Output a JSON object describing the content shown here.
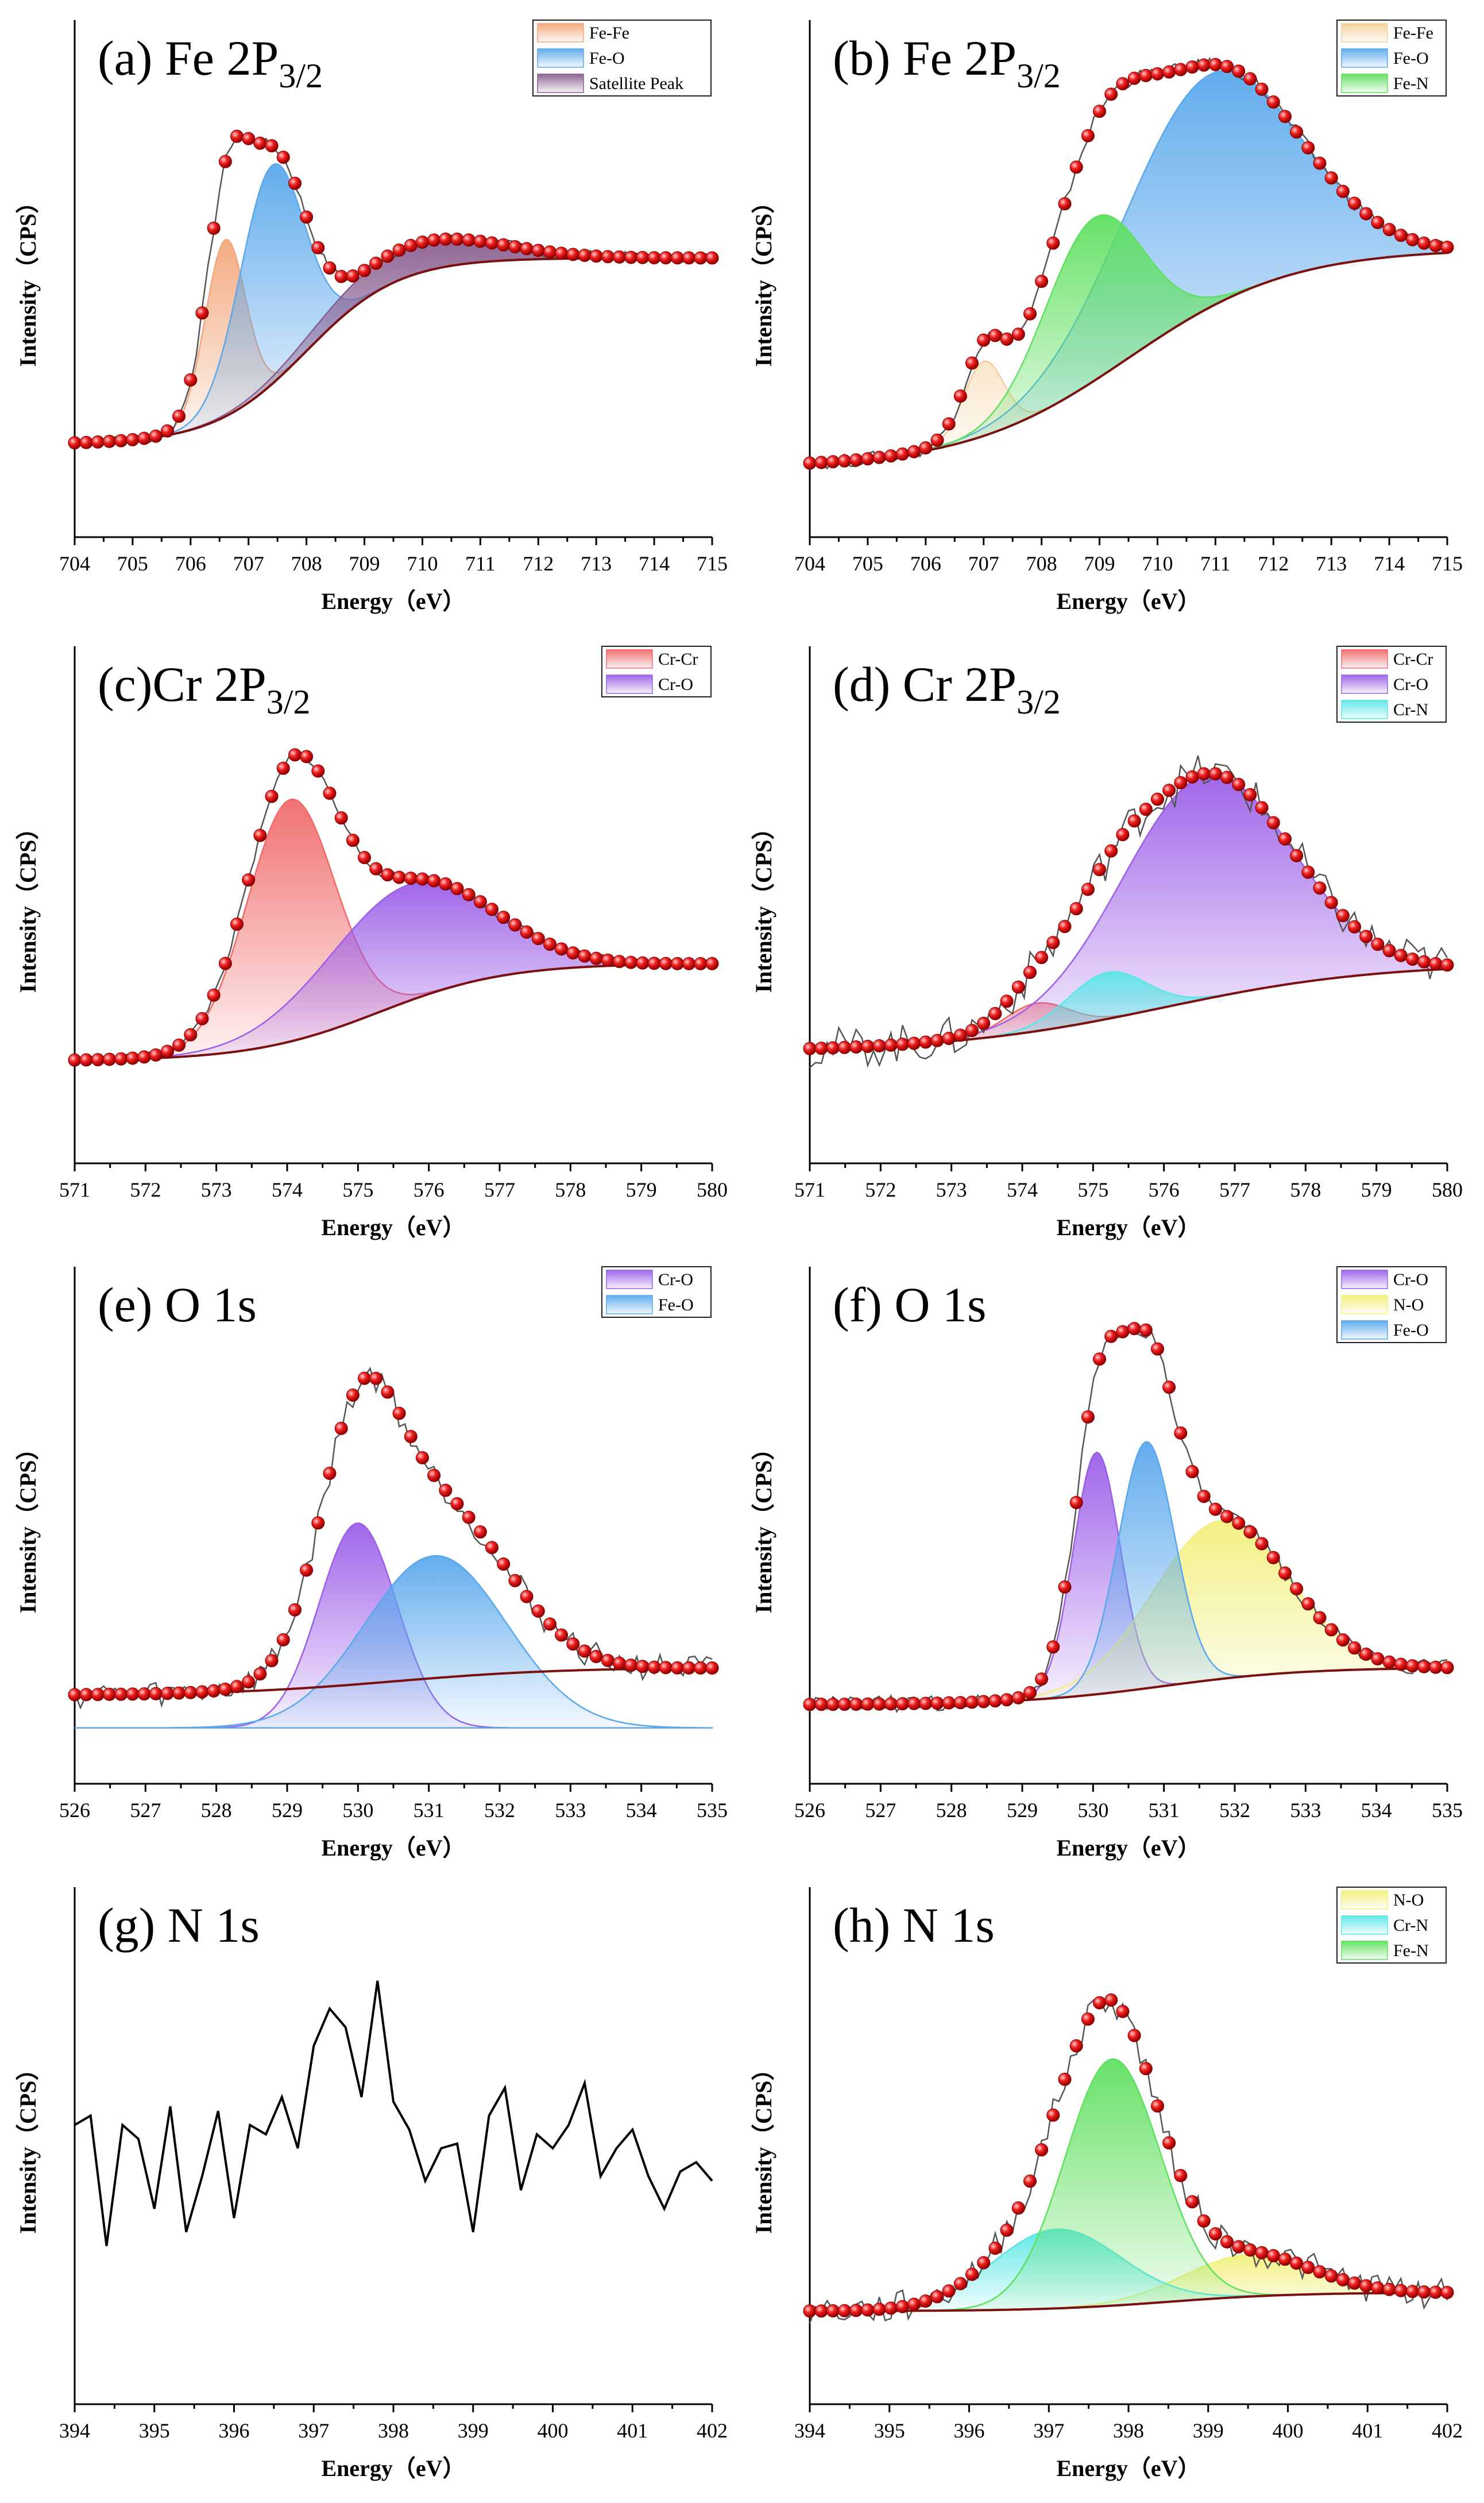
{
  "figure": {
    "y_label": "Intensity（CPS）",
    "x_label": "Energy（eV）"
  },
  "colors": {
    "fit_points": "#e01010",
    "background": "#7a1010",
    "raw": "#555555"
  },
  "chart_data": [
    {
      "id": "a",
      "type": "area",
      "title": "(a) Fe 2P",
      "title_sub": "3/2",
      "xlabel": "Energy（eV）",
      "ylabel": "Intensity（CPS）",
      "xlim": [
        704,
        715
      ],
      "ylim": [
        0,
        1
      ],
      "xticks": [
        "704",
        "705",
        "706",
        "707",
        "708",
        "709",
        "710",
        "711",
        "712",
        "713",
        "714",
        "715"
      ],
      "background": {
        "low": 0.2,
        "high": 0.6,
        "mid": 708,
        "width": 0.8
      },
      "noise": 0.012,
      "series": [
        {
          "name": "Fe-Fe",
          "color": "#f3a77b",
          "center": 706.6,
          "height": 0.38,
          "sigma": 0.35,
          "base": "bg"
        },
        {
          "name": "Fe-O",
          "color": "#5aa8ec",
          "center": 707.4,
          "height": 0.47,
          "sigma": 0.55,
          "base": "bg"
        },
        {
          "name": "Satellite Peak",
          "color": "#8a5f8f",
          "center": 709.8,
          "height": 0.065,
          "sigma": 1.4,
          "base": "bg"
        }
      ]
    },
    {
      "id": "b",
      "type": "area",
      "title": "(b) Fe 2P",
      "title_sub": "3/2",
      "xlabel": "Energy（eV）",
      "ylabel": "Intensity（CPS）",
      "xlim": [
        704,
        715
      ],
      "ylim": [
        0,
        1
      ],
      "xticks": [
        "704",
        "705",
        "706",
        "707",
        "708",
        "709",
        "710",
        "711",
        "712",
        "713",
        "714",
        "715"
      ],
      "background": {
        "low": 0.15,
        "high": 0.62,
        "mid": 709.5,
        "width": 1.4
      },
      "noise": 0.015,
      "series": [
        {
          "name": "Fe-Fe",
          "color": "#f5cf9a",
          "center": 707.0,
          "height": 0.16,
          "sigma": 0.35,
          "base": "bg"
        },
        {
          "name": "Fe-O",
          "color": "#5aa8ec",
          "center": 710.9,
          "height": 0.5,
          "sigma": 1.5,
          "base": "bg"
        },
        {
          "name": "Fe-N",
          "color": "#5fe05f",
          "center": 708.9,
          "height": 0.35,
          "sigma": 0.85,
          "base": "bg"
        }
      ]
    },
    {
      "id": "c",
      "type": "area",
      "title": "(c)Cr 2P",
      "title_sub": "3/2",
      "xlabel": "Energy（eV）",
      "ylabel": "Intensity（CPS）",
      "xlim": [
        571,
        580
      ],
      "ylim": [
        0,
        1
      ],
      "xticks": [
        "571",
        "572",
        "573",
        "574",
        "575",
        "576",
        "577",
        "578",
        "579",
        "580"
      ],
      "background": {
        "low": 0.22,
        "high": 0.43,
        "mid": 575.3,
        "width": 0.9
      },
      "noise": 0.01,
      "series": [
        {
          "name": "Cr-Cr",
          "color": "#f06a6a",
          "center": 574.05,
          "height": 0.52,
          "sigma": 0.62,
          "base": "bg"
        },
        {
          "name": "Cr-O",
          "color": "#9b5ee8",
          "center": 575.7,
          "height": 0.25,
          "sigma": 1.15,
          "base": "bg"
        }
      ]
    },
    {
      "id": "d",
      "type": "area",
      "title": "(d) Cr 2P",
      "title_sub": "3/2",
      "xlabel": "Energy（eV）",
      "ylabel": "Intensity（CPS）",
      "xlim": [
        571,
        580
      ],
      "ylim": [
        0,
        1
      ],
      "xticks": [
        "571",
        "572",
        "573",
        "574",
        "575",
        "576",
        "577",
        "578",
        "579",
        "580"
      ],
      "background": {
        "low": 0.24,
        "high": 0.43,
        "mid": 576.0,
        "width": 1.5
      },
      "noise": 0.045,
      "series": [
        {
          "name": "Cr-Cr",
          "color": "#f06a6a",
          "center": 574.2,
          "height": 0.06,
          "sigma": 0.45,
          "base": "bg"
        },
        {
          "name": "Cr-O",
          "color": "#9b5ee8",
          "center": 576.6,
          "height": 0.48,
          "sigma": 1.2,
          "base": "bg"
        },
        {
          "name": "Cr-N",
          "color": "#5ae6e6",
          "center": 575.2,
          "height": 0.1,
          "sigma": 0.55,
          "base": "bg"
        }
      ]
    },
    {
      "id": "e",
      "type": "area",
      "title": "(e) O 1s",
      "title_sub": "",
      "xlabel": "Energy（eV）",
      "ylabel": "Intensity（CPS）",
      "xlim": [
        526,
        535
      ],
      "ylim": [
        0,
        1
      ],
      "xticks": [
        "526",
        "527",
        "528",
        "529",
        "530",
        "531",
        "532",
        "533",
        "534",
        "535"
      ],
      "background": {
        "low": 0.19,
        "high": 0.25,
        "mid": 530.5,
        "width": 1.2
      },
      "noise": 0.03,
      "series": [
        {
          "name": "Cr-O",
          "color": "#9b5ee8",
          "center": 530.0,
          "height": 0.44,
          "sigma": 0.55,
          "base": "zero"
        },
        {
          "name": "Fe-O",
          "color": "#5aa8ec",
          "center": 531.1,
          "height": 0.37,
          "sigma": 1.0,
          "base": "zero"
        }
      ]
    },
    {
      "id": "f",
      "type": "area",
      "title": "(f) O 1s",
      "title_sub": "",
      "xlabel": "Energy（eV）",
      "ylabel": "Intensity（CPS）",
      "xlim": [
        526,
        535
      ],
      "ylim": [
        0,
        1
      ],
      "xticks": [
        "526",
        "527",
        "528",
        "529",
        "530",
        "531",
        "532",
        "533",
        "534",
        "535"
      ],
      "background": {
        "low": 0.17,
        "high": 0.25,
        "mid": 531.0,
        "width": 1.0
      },
      "noise": 0.018,
      "series": [
        {
          "name": "Cr-O",
          "color": "#9b5ee8",
          "center": 530.05,
          "height": 0.52,
          "sigma": 0.33,
          "base": "bg"
        },
        {
          "name": "N-O",
          "color": "#f2f07a",
          "center": 531.8,
          "height": 0.34,
          "sigma": 0.95,
          "base": "bg"
        },
        {
          "name": "Fe-O",
          "color": "#5aa8ec",
          "center": 530.75,
          "height": 0.53,
          "sigma": 0.4,
          "base": "bg"
        }
      ]
    },
    {
      "id": "g",
      "type": "line",
      "title": "(g) N 1s",
      "title_sub": "",
      "xlabel": "Energy（eV）",
      "ylabel": "Intensity（CPS）",
      "xlim": [
        394,
        402
      ],
      "ylim": [
        0,
        1
      ],
      "xticks": [
        "394",
        "395",
        "396",
        "397",
        "398",
        "399",
        "400",
        "401",
        "402"
      ],
      "x": [
        394,
        394.2,
        394.4,
        394.6,
        394.8,
        395.0,
        395.2,
        395.4,
        395.6,
        395.8,
        396.0,
        396.2,
        396.4,
        396.6,
        396.8,
        397.0,
        397.2,
        397.4,
        397.6,
        397.8,
        398.0,
        398.2,
        398.4,
        398.6,
        398.8,
        399.0,
        399.2,
        399.4,
        399.6,
        399.8,
        400.0,
        400.2,
        400.4,
        400.6,
        400.8,
        401.0,
        401.2,
        401.4,
        401.6,
        401.8,
        402.0
      ],
      "values": [
        0.6,
        0.62,
        0.34,
        0.6,
        0.57,
        0.42,
        0.64,
        0.37,
        0.49,
        0.63,
        0.4,
        0.6,
        0.58,
        0.66,
        0.55,
        0.77,
        0.85,
        0.81,
        0.66,
        0.91,
        0.65,
        0.59,
        0.48,
        0.55,
        0.56,
        0.37,
        0.62,
        0.68,
        0.46,
        0.58,
        0.55,
        0.6,
        0.69,
        0.49,
        0.55,
        0.59,
        0.49,
        0.42,
        0.5,
        0.52,
        0.48
      ],
      "series": []
    },
    {
      "id": "h",
      "type": "area",
      "title": "(h) N 1s",
      "title_sub": "",
      "xlabel": "Energy（eV）",
      "ylabel": "Intensity（CPS）",
      "xlim": [
        394,
        402
      ],
      "ylim": [
        0,
        1
      ],
      "xticks": [
        "394",
        "395",
        "396",
        "397",
        "398",
        "399",
        "400",
        "401",
        "402"
      ],
      "background": {
        "low": 0.2,
        "high": 0.24,
        "mid": 398.5,
        "width": 0.8
      },
      "noise": 0.035,
      "series": [
        {
          "name": "N-O",
          "color": "#f2f07a",
          "center": 399.5,
          "height": 0.09,
          "sigma": 0.8,
          "base": "bg"
        },
        {
          "name": "Cr-N",
          "color": "#5ae6e6",
          "center": 397.1,
          "height": 0.17,
          "sigma": 0.8,
          "base": "bg"
        },
        {
          "name": "Fe-N",
          "color": "#5fe05f",
          "center": 397.8,
          "height": 0.53,
          "sigma": 0.6,
          "base": "bg"
        }
      ]
    }
  ]
}
